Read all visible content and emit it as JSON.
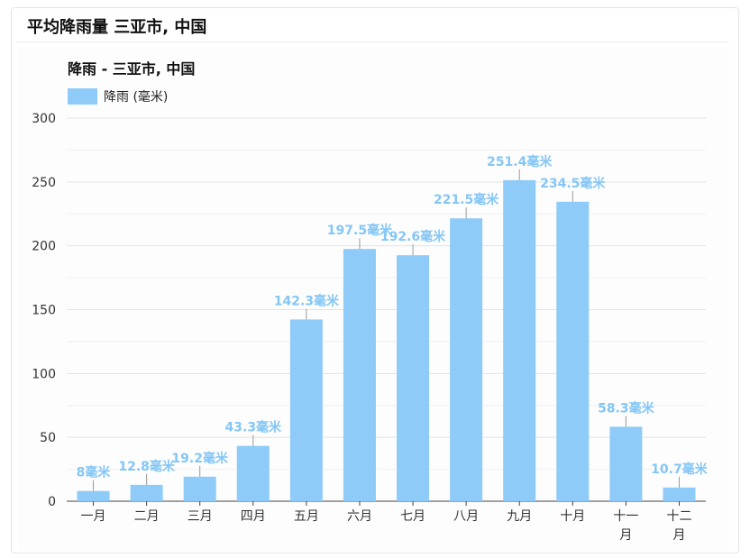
{
  "page": {
    "title": "平均降雨量 三亚市, 中国"
  },
  "chart_data": {
    "type": "bar",
    "title": "降雨 - 三亚市, 中国",
    "legend": {
      "position": "top-left",
      "label": "降雨 (毫米)"
    },
    "categories": [
      [
        "一月"
      ],
      [
        "二月"
      ],
      [
        "三月"
      ],
      [
        "四月"
      ],
      [
        "五月"
      ],
      [
        "六月"
      ],
      [
        "七月"
      ],
      [
        "八月"
      ],
      [
        "九月"
      ],
      [
        "十月"
      ],
      [
        "十一",
        "月"
      ],
      [
        "十二",
        "月"
      ]
    ],
    "series": [
      {
        "name": "降雨 (毫米)",
        "values": [
          8,
          12.8,
          19.2,
          43.3,
          142.3,
          197.5,
          192.6,
          221.5,
          251.4,
          234.5,
          58.3,
          10.7
        ]
      }
    ],
    "value_suffix": "毫米",
    "ylim": [
      0,
      300
    ],
    "yticks": [
      0,
      50,
      100,
      150,
      200,
      250,
      300
    ],
    "grid": true,
    "colors": {
      "bar": "#8ecbf8",
      "label": "#84c6f6",
      "grid": "#e6e6e6",
      "axis": "#444444"
    }
  }
}
